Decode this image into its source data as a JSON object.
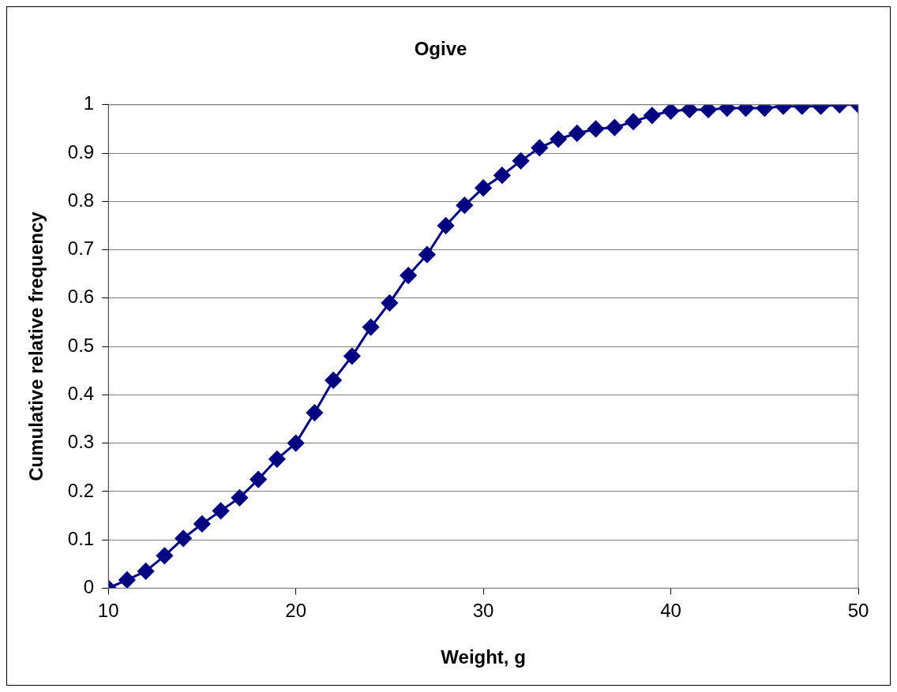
{
  "chart_data": {
    "type": "line",
    "title": "Ogive",
    "xlabel": "Weight, g",
    "ylabel": "Cumulative relative frequency",
    "x": [
      10,
      11,
      12,
      13,
      14,
      15,
      16,
      17,
      18,
      19,
      20,
      21,
      22,
      23,
      24,
      25,
      26,
      27,
      28,
      29,
      30,
      31,
      32,
      33,
      34,
      35,
      36,
      37,
      38,
      39,
      40,
      41,
      42,
      43,
      44,
      45,
      46,
      47,
      48,
      49,
      50
    ],
    "series": [
      {
        "color": "#000080",
        "values": [
          0,
          0.017,
          0.035,
          0.067,
          0.103,
          0.133,
          0.16,
          0.187,
          0.225,
          0.267,
          0.3,
          0.363,
          0.43,
          0.48,
          0.54,
          0.59,
          0.647,
          0.69,
          0.75,
          0.792,
          0.828,
          0.854,
          0.884,
          0.911,
          0.929,
          0.941,
          0.95,
          0.953,
          0.965,
          0.978,
          0.987,
          0.99,
          0.99,
          0.993,
          0.993,
          0.993,
          0.997,
          0.997,
          0.997,
          1,
          1
        ]
      }
    ],
    "xlim": [
      10,
      50
    ],
    "xticks": [
      10,
      20,
      30,
      40,
      50
    ],
    "ylim": [
      0,
      1
    ],
    "yticks": [
      0,
      0.1,
      0.2,
      0.3,
      0.4,
      0.5,
      0.6,
      0.7,
      0.8,
      0.9,
      1
    ],
    "grid": "y",
    "legend": false,
    "marker": "diamond",
    "line_style": "solid"
  }
}
